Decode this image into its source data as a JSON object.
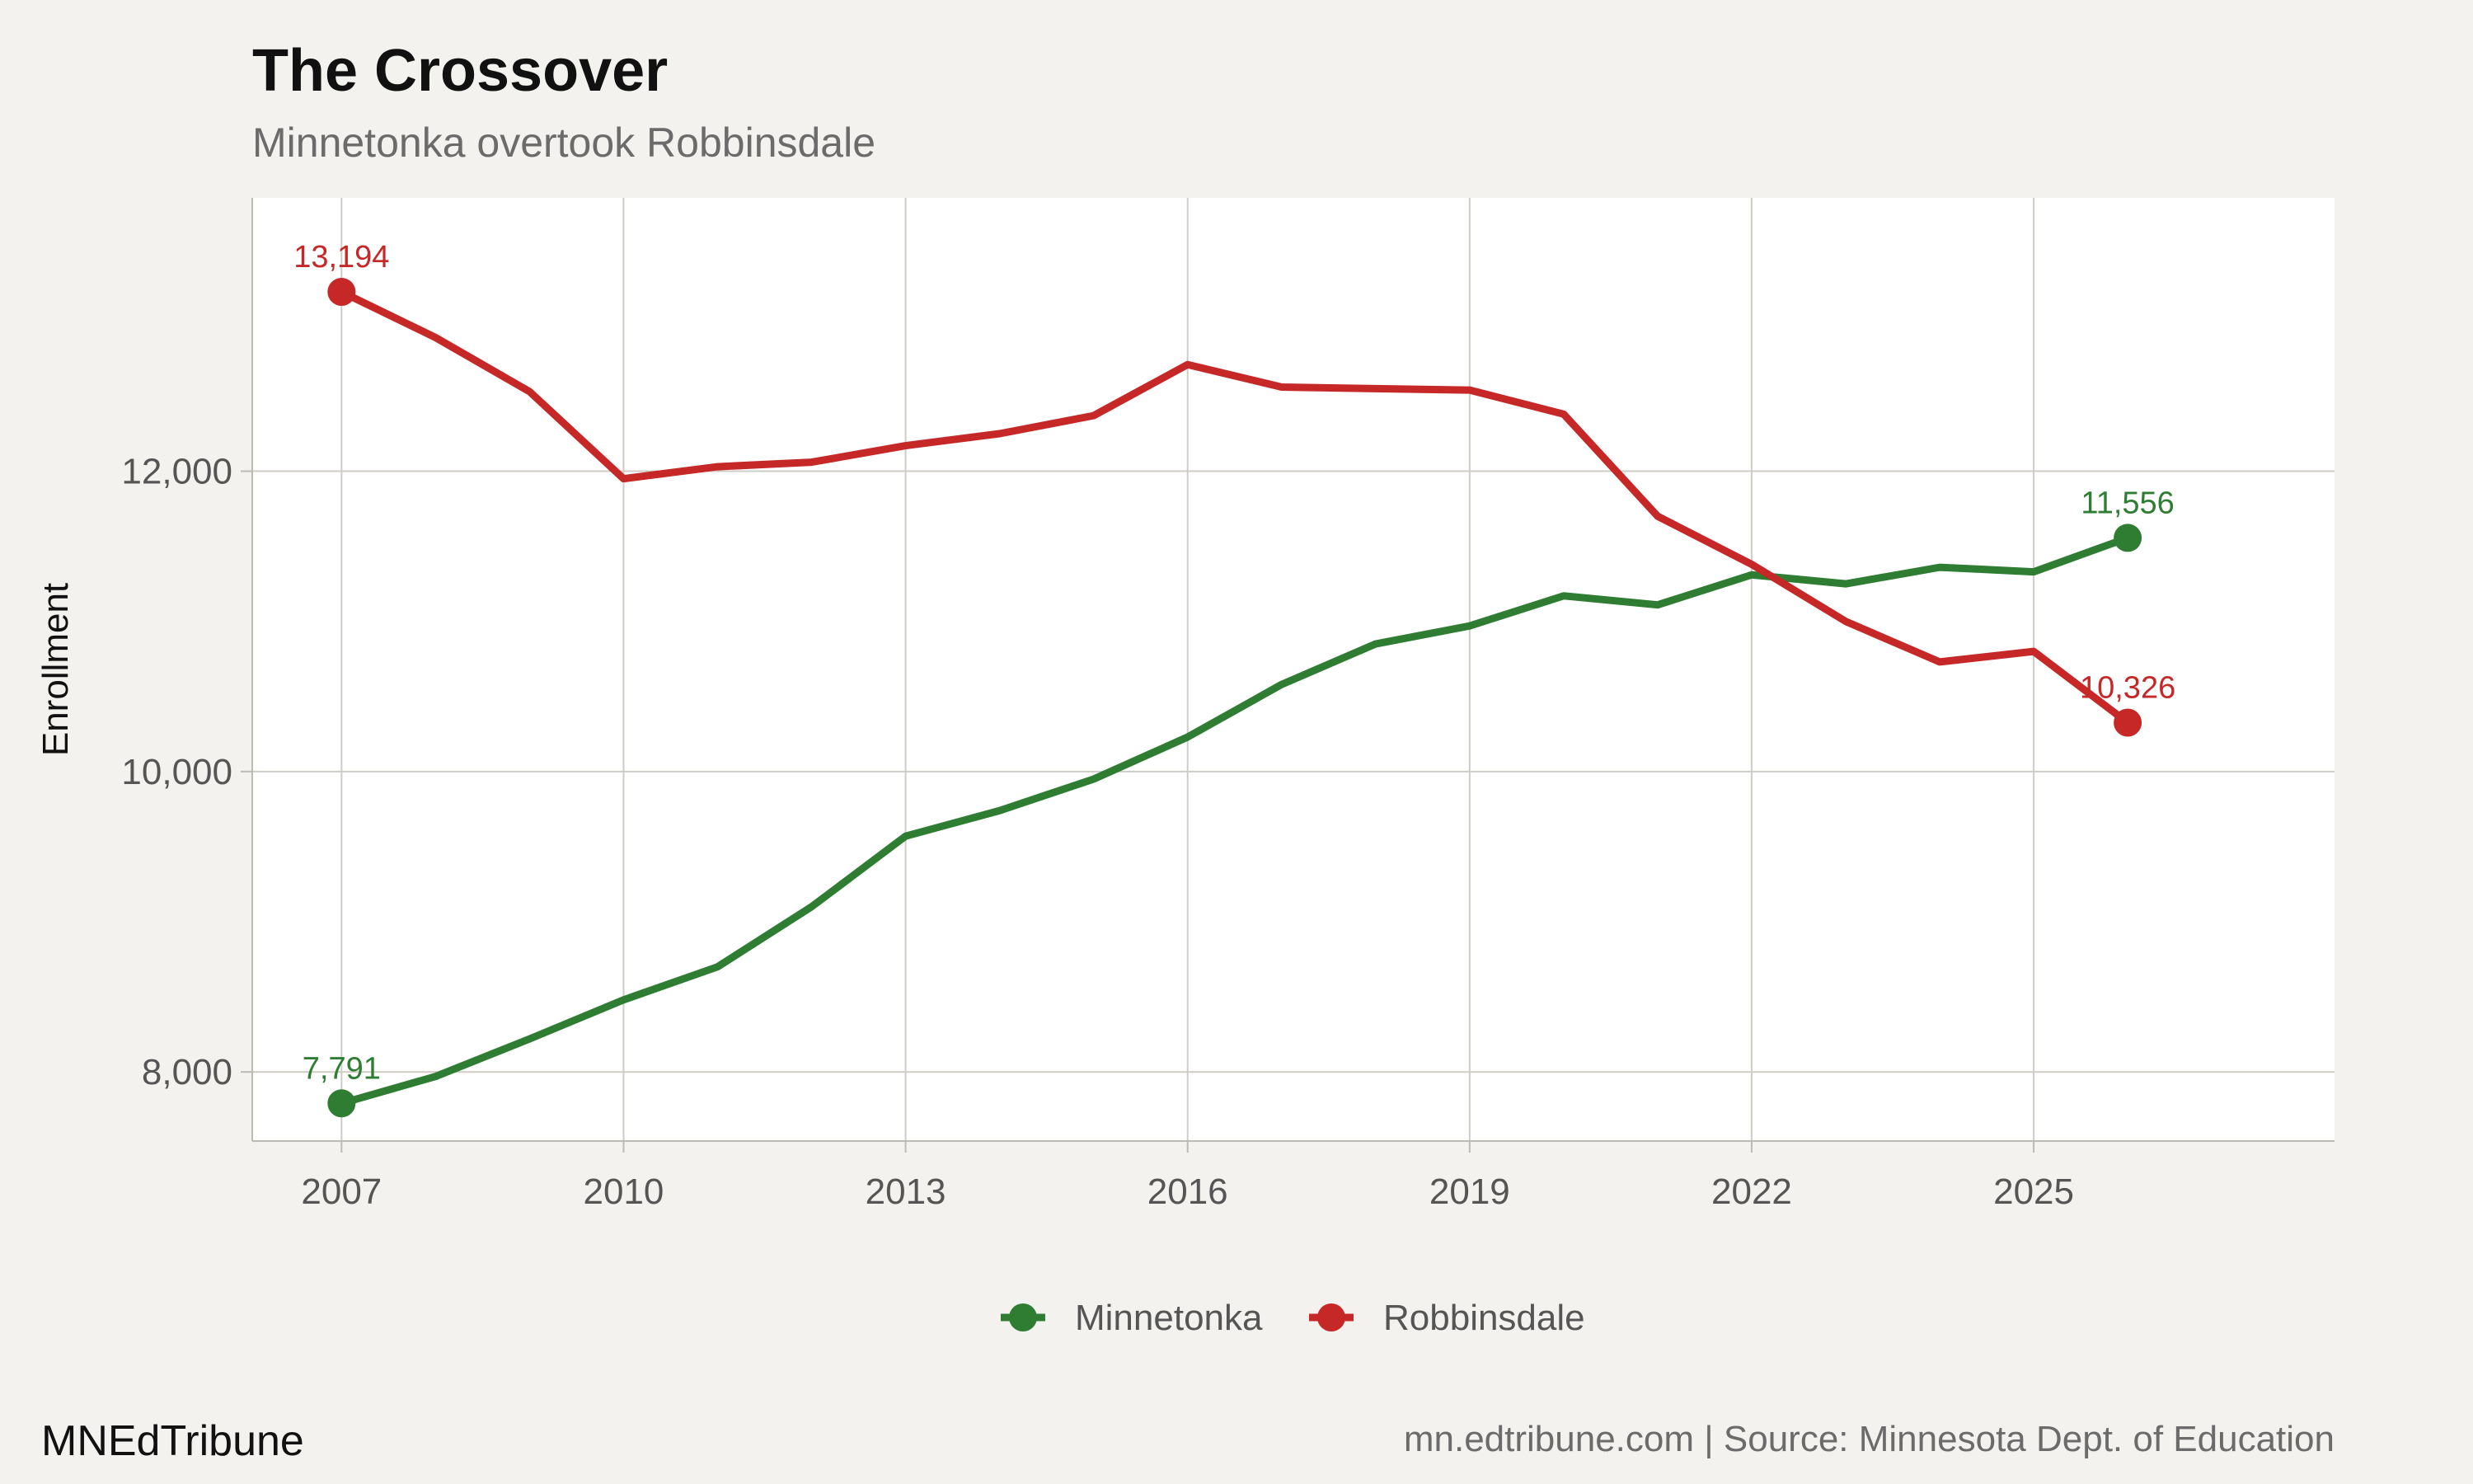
{
  "chart_data": {
    "type": "line",
    "title": "The Crossover",
    "subtitle": "Minnetonka overtook Robbinsdale",
    "xlabel": "",
    "ylabel": "Enrollment",
    "xlim": [
      2006.05,
      2028.2
    ],
    "ylim": [
      7540,
      13820
    ],
    "x_ticks": [
      2007,
      2010,
      2013,
      2016,
      2019,
      2022,
      2025
    ],
    "x_tick_labels": [
      "2007",
      "2010",
      "2013",
      "2016",
      "2019",
      "2022",
      "2025"
    ],
    "y_ticks": [
      8000,
      10000,
      12000
    ],
    "y_tick_labels": [
      "8,000",
      "10,000",
      "12,000"
    ],
    "grid": true,
    "legend_position": "bottom",
    "x": [
      2007,
      2008,
      2009,
      2010,
      2011,
      2012,
      2013,
      2014,
      2015,
      2016,
      2017,
      2018,
      2019,
      2020,
      2021,
      2022,
      2023,
      2024,
      2025,
      2026
    ],
    "series": [
      {
        "name": "Minnetonka",
        "color": "#2e7d32",
        "values": [
          7791,
          7970,
          8220,
          8480,
          8700,
          9100,
          9570,
          9740,
          9950,
          10230,
          10580,
          10850,
          10970,
          11170,
          11110,
          11310,
          11250,
          11360,
          11330,
          11556
        ],
        "endpoint_labels": {
          "first": "7,791",
          "last": "11,556"
        }
      },
      {
        "name": "Robbinsdale",
        "color": "#c62828",
        "values": [
          13194,
          12890,
          12530,
          11950,
          12030,
          12060,
          12170,
          12250,
          12370,
          12710,
          12560,
          12550,
          12540,
          12380,
          11700,
          11380,
          11000,
          10730,
          10800,
          10326
        ],
        "endpoint_labels": {
          "first": "13,194",
          "last": "10,326"
        }
      }
    ]
  },
  "footer": {
    "brand": "MNEdTribune",
    "source": "mn.edtribune.com | Source: Minnesota Dept. of Education"
  }
}
